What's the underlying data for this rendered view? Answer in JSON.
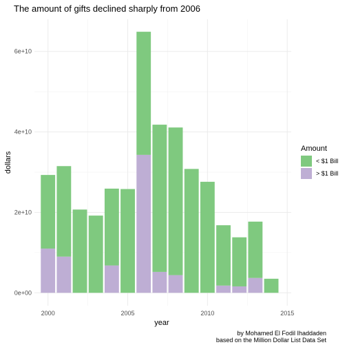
{
  "chart_data": {
    "type": "bar",
    "stacked": true,
    "title": "The amount of gifts declined sharply from 2006",
    "xlabel": "year",
    "ylabel": "dollars",
    "x": [
      2000,
      2001,
      2002,
      2003,
      2004,
      2005,
      2006,
      2007,
      2008,
      2009,
      2010,
      2011,
      2012,
      2013,
      2014
    ],
    "xlim": [
      1999.15,
      2015.25
    ],
    "ylim": [
      -3200000000,
      68000000000
    ],
    "x_ticks": [
      2000,
      2005,
      2010,
      2015
    ],
    "x_tick_labels": [
      "2000",
      "2005",
      "2010",
      "2015"
    ],
    "y_ticks": [
      0,
      20000000000,
      40000000000,
      60000000000
    ],
    "y_tick_labels": [
      "0e+00",
      "2e+10",
      "4e+10",
      "6e+10"
    ],
    "grid": true,
    "legend": {
      "title": "Amount",
      "position": "right"
    },
    "series": [
      {
        "name": "> $1 Bill",
        "color": "#beaed4",
        "values": [
          11000000000,
          9000000000,
          0,
          0,
          6800000000,
          0,
          34300000000,
          5200000000,
          4400000000,
          0,
          0,
          1800000000,
          1600000000,
          3700000000,
          0
        ]
      },
      {
        "name": "< $1 Bill",
        "color": "#7fc97f",
        "values": [
          18300000000,
          22500000000,
          20700000000,
          19200000000,
          19100000000,
          25800000000,
          30600000000,
          36600000000,
          36700000000,
          30800000000,
          27600000000,
          15000000000,
          12200000000,
          14000000000,
          3500000000
        ]
      }
    ],
    "caption": [
      "by Mohamed El Fodil Ihaddaden",
      "based on the Million Dollar List Data Set"
    ]
  }
}
